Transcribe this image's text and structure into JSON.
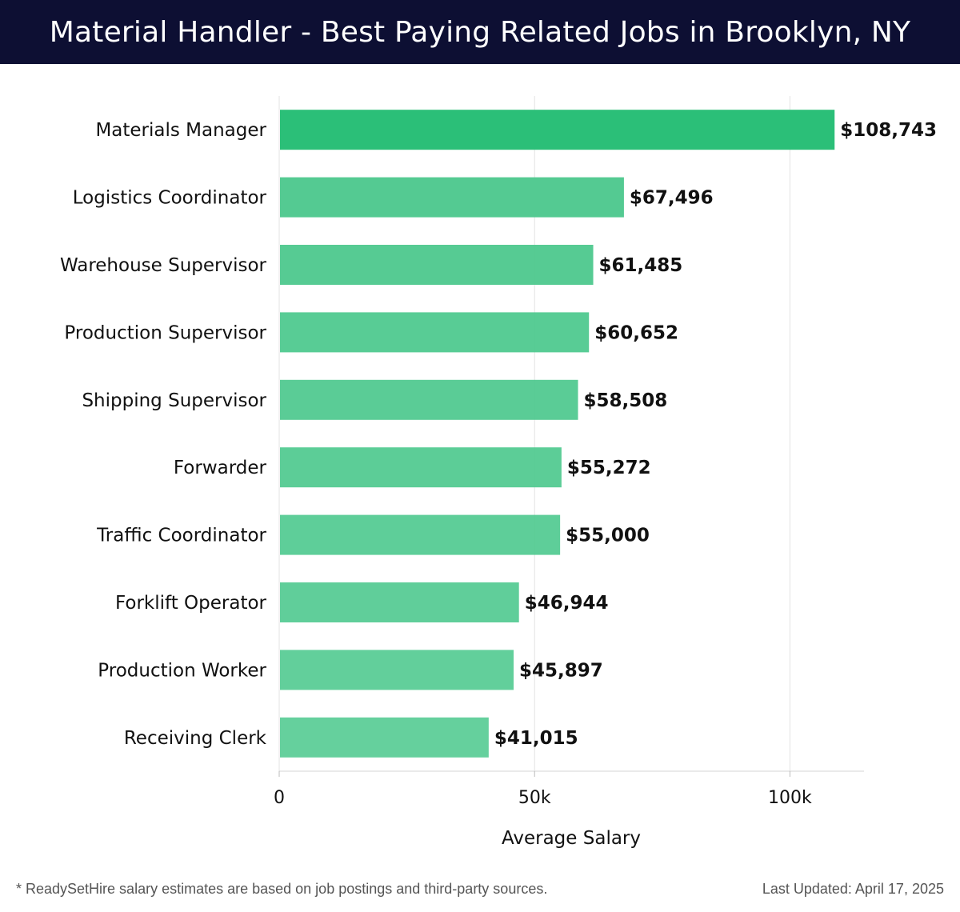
{
  "title": "Material Handler - Best Paying Related Jobs in Brooklyn, NY",
  "footnote": "* ReadySetHire salary estimates are based on job postings and third-party sources.",
  "last_updated": "Last Updated: April 17, 2025",
  "colors": {
    "header_bg": "#0d0f33",
    "bar_top": "#2bbf78",
    "bar_other": "#4cc88d",
    "grid": "#e3e3e3"
  },
  "chart_data": {
    "type": "bar",
    "orientation": "horizontal",
    "categories": [
      "Materials Manager",
      "Logistics Coordinator",
      "Warehouse Supervisor",
      "Production Supervisor",
      "Shipping Supervisor",
      "Forwarder",
      "Traffic Coordinator",
      "Forklift Operator",
      "Production Worker",
      "Receiving Clerk"
    ],
    "values": [
      108743,
      67496,
      61485,
      60652,
      58508,
      55272,
      55000,
      46944,
      45897,
      41015
    ],
    "data_labels": [
      "$108,743",
      "$67,496",
      "$61,485",
      "$60,652",
      "$58,508",
      "$55,272",
      "$55,000",
      "$46,944",
      "$45,897",
      "$41,015"
    ],
    "xlabel": "Average Salary",
    "ylabel": "",
    "xlim": [
      0,
      114500
    ],
    "xticks": [
      0,
      50000,
      100000
    ],
    "xtick_labels": [
      "0",
      "50k",
      "100k"
    ],
    "grid": true
  }
}
